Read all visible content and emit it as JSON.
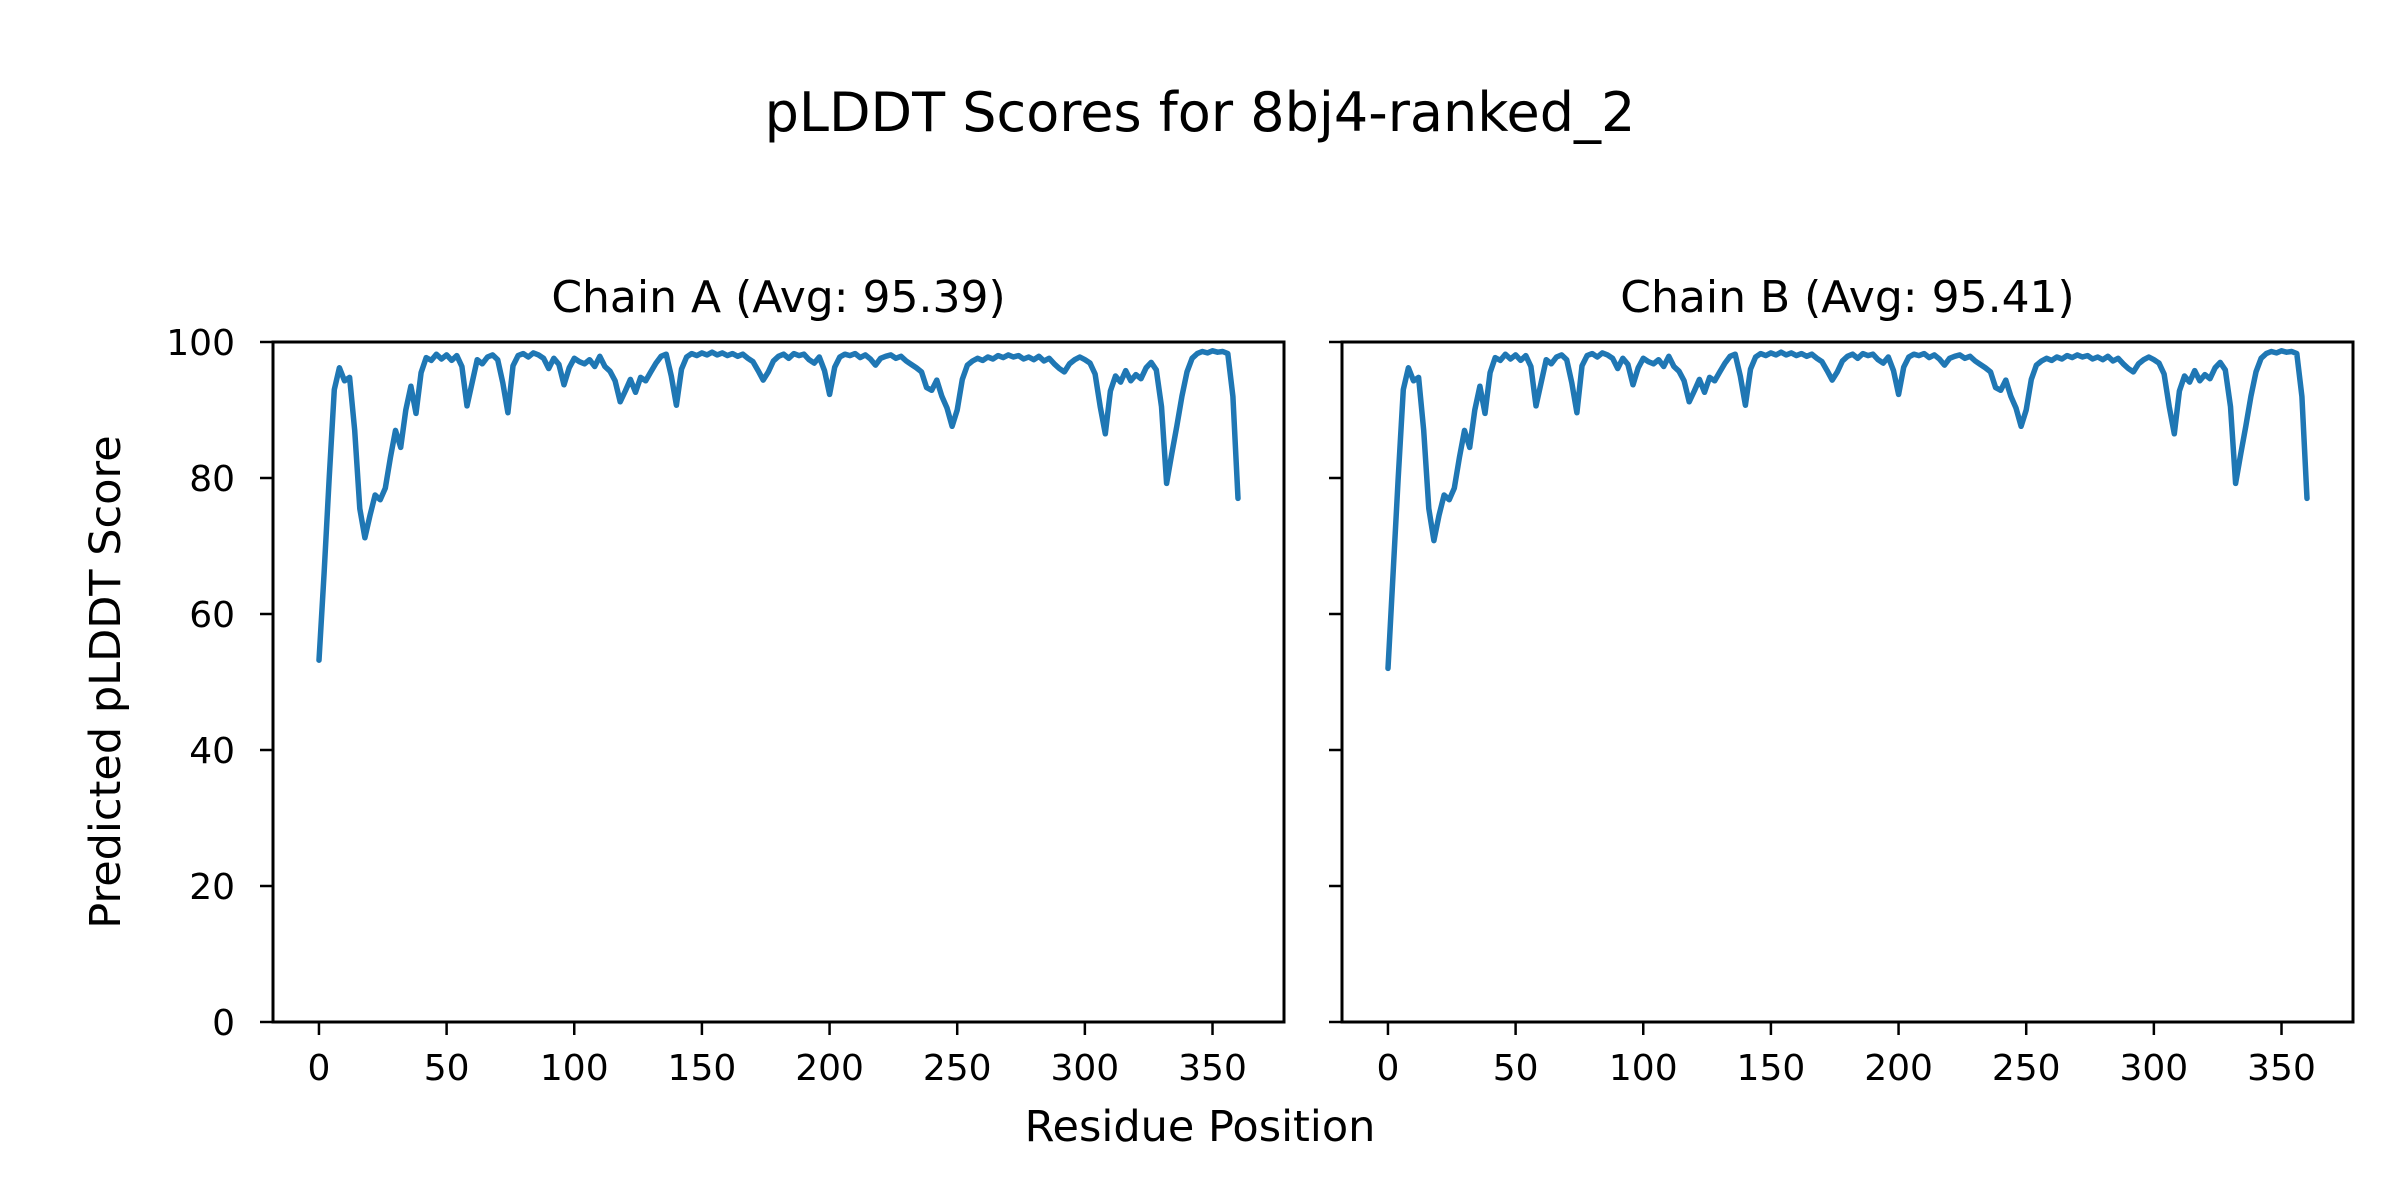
{
  "figure": {
    "title": "pLDDT Scores for 8bj4-ranked_2",
    "xlabel": "Residue Position",
    "ylabel": "Predicted pLDDT Score",
    "background_color": "#ffffff",
    "text_color": "#000000",
    "spine_color": "#000000"
  },
  "chart_data": [
    {
      "type": "line",
      "name": "chain-a",
      "title": "Chain A (Avg: 95.39)",
      "average": 95.39,
      "line_color": "#1f77b4",
      "xlim": [
        -18,
        378
      ],
      "ylim": [
        0,
        100
      ],
      "x_ticks": [
        0,
        50,
        100,
        150,
        200,
        250,
        300,
        350
      ],
      "y_ticks": [
        0,
        20,
        40,
        60,
        80,
        100
      ],
      "y_tick_labels_visible": true,
      "grid": false,
      "legend": false,
      "x": [
        0,
        2,
        4,
        6,
        8,
        10,
        12,
        14,
        16,
        18,
        20,
        22,
        24,
        26,
        28,
        30,
        32,
        34,
        36,
        38,
        40,
        42,
        44,
        46,
        48,
        50,
        52,
        54,
        56,
        58,
        60,
        62,
        64,
        66,
        68,
        70,
        72,
        74,
        76,
        78,
        80,
        82,
        84,
        86,
        88,
        90,
        92,
        94,
        96,
        98,
        100,
        102,
        104,
        106,
        108,
        110,
        112,
        114,
        116,
        118,
        120,
        122,
        124,
        126,
        128,
        130,
        132,
        134,
        136,
        138,
        140,
        142,
        144,
        146,
        148,
        150,
        152,
        154,
        156,
        158,
        160,
        162,
        164,
        166,
        168,
        170,
        172,
        174,
        176,
        178,
        180,
        182,
        184,
        186,
        188,
        190,
        192,
        194,
        196,
        198,
        200,
        202,
        204,
        206,
        208,
        210,
        212,
        214,
        216,
        218,
        220,
        222,
        224,
        226,
        228,
        230,
        232,
        234,
        236,
        238,
        240,
        242,
        244,
        246,
        248,
        250,
        252,
        254,
        256,
        258,
        260,
        262,
        264,
        266,
        268,
        270,
        272,
        274,
        276,
        278,
        280,
        282,
        284,
        286,
        288,
        290,
        292,
        294,
        296,
        298,
        300,
        302,
        304,
        306,
        308,
        310,
        312,
        314,
        316,
        318,
        320,
        322,
        324,
        326,
        328,
        330,
        332,
        334,
        336,
        338,
        340,
        342,
        344,
        346,
        348,
        350,
        352,
        354,
        356,
        358,
        360
      ],
      "values": [
        53.2,
        66,
        80,
        93,
        96.2,
        94.3,
        94.8,
        87,
        75.5,
        71.2,
        74.5,
        77.5,
        76.8,
        78.5,
        83,
        87,
        84.5,
        90,
        93.5,
        89.5,
        95.5,
        97.7,
        97.3,
        98.2,
        97.5,
        98.1,
        97.3,
        98,
        96.4,
        90.6,
        94,
        97.4,
        96.8,
        97.8,
        98.1,
        97.4,
        94,
        89.6,
        96.5,
        98,
        98.3,
        97.8,
        98.4,
        98.1,
        97.6,
        96.1,
        97.6,
        96.7,
        93.7,
        96.2,
        97.6,
        97.1,
        96.8,
        97.4,
        96.4,
        97.9,
        96.4,
        95.7,
        94.3,
        91.2,
        92.8,
        94.5,
        92.6,
        94.8,
        94.3,
        95.6,
        96.9,
        97.9,
        98.2,
        95,
        90.7,
        96,
        97.8,
        98.3,
        98,
        98.4,
        98.1,
        98.5,
        98.1,
        98.4,
        98,
        98.3,
        97.9,
        98.2,
        97.6,
        97.1,
        95.8,
        94.4,
        95.6,
        97.2,
        97.9,
        98.2,
        97.6,
        98.3,
        98,
        98.2,
        97.4,
        96.9,
        97.8,
        95.8,
        92.3,
        96.3,
        97.8,
        98.2,
        98,
        98.3,
        97.7,
        98.1,
        97.5,
        96.6,
        97.6,
        97.9,
        98.1,
        97.6,
        97.9,
        97.2,
        96.7,
        96.2,
        95.6,
        93.3,
        92.9,
        94.4,
        92,
        90.3,
        87.6,
        90,
        94.5,
        96.6,
        97.2,
        97.6,
        97.3,
        97.8,
        97.5,
        98,
        97.7,
        98.1,
        97.8,
        98,
        97.5,
        97.8,
        97.4,
        97.9,
        97.2,
        97.6,
        96.8,
        96.1,
        95.6,
        96.8,
        97.4,
        97.8,
        97.4,
        96.9,
        95.3,
        90.5,
        86.5,
        92.8,
        95,
        94.1,
        95.8,
        94.3,
        95.2,
        94.6,
        96.2,
        97,
        95.9,
        90.5,
        79.2,
        83.5,
        87.6,
        92,
        95.6,
        97.6,
        98.3,
        98.6,
        98.4,
        98.7,
        98.5,
        98.6,
        98.3,
        92,
        77
      ]
    },
    {
      "type": "line",
      "name": "chain-b",
      "title": "Chain B (Avg: 95.41)",
      "average": 95.41,
      "line_color": "#1f77b4",
      "xlim": [
        -18,
        378
      ],
      "ylim": [
        0,
        100
      ],
      "x_ticks": [
        0,
        50,
        100,
        150,
        200,
        250,
        300,
        350
      ],
      "y_ticks": [
        0,
        20,
        40,
        60,
        80,
        100
      ],
      "y_tick_labels_visible": false,
      "grid": false,
      "legend": false,
      "x": [
        0,
        2,
        4,
        6,
        8,
        10,
        12,
        14,
        16,
        18,
        20,
        22,
        24,
        26,
        28,
        30,
        32,
        34,
        36,
        38,
        40,
        42,
        44,
        46,
        48,
        50,
        52,
        54,
        56,
        58,
        60,
        62,
        64,
        66,
        68,
        70,
        72,
        74,
        76,
        78,
        80,
        82,
        84,
        86,
        88,
        90,
        92,
        94,
        96,
        98,
        100,
        102,
        104,
        106,
        108,
        110,
        112,
        114,
        116,
        118,
        120,
        122,
        124,
        126,
        128,
        130,
        132,
        134,
        136,
        138,
        140,
        142,
        144,
        146,
        148,
        150,
        152,
        154,
        156,
        158,
        160,
        162,
        164,
        166,
        168,
        170,
        172,
        174,
        176,
        178,
        180,
        182,
        184,
        186,
        188,
        190,
        192,
        194,
        196,
        198,
        200,
        202,
        204,
        206,
        208,
        210,
        212,
        214,
        216,
        218,
        220,
        222,
        224,
        226,
        228,
        230,
        232,
        234,
        236,
        238,
        240,
        242,
        244,
        246,
        248,
        250,
        252,
        254,
        256,
        258,
        260,
        262,
        264,
        266,
        268,
        270,
        272,
        274,
        276,
        278,
        280,
        282,
        284,
        286,
        288,
        290,
        292,
        294,
        296,
        298,
        300,
        302,
        304,
        306,
        308,
        310,
        312,
        314,
        316,
        318,
        320,
        322,
        324,
        326,
        328,
        330,
        332,
        334,
        336,
        338,
        340,
        342,
        344,
        346,
        348,
        350,
        352,
        354,
        356,
        358,
        360
      ],
      "values": [
        52,
        66,
        80,
        93,
        96.2,
        94.3,
        94.8,
        87,
        75.5,
        70.8,
        74.5,
        77.5,
        76.8,
        78.5,
        83,
        87,
        84.5,
        90,
        93.5,
        89.5,
        95.5,
        97.7,
        97.3,
        98.2,
        97.5,
        98.1,
        97.3,
        98,
        96.4,
        90.6,
        94,
        97.4,
        96.8,
        97.8,
        98.1,
        97.4,
        94,
        89.6,
        96.5,
        98,
        98.3,
        97.8,
        98.4,
        98.1,
        97.6,
        96.1,
        97.6,
        96.7,
        93.7,
        96.2,
        97.6,
        97.1,
        96.8,
        97.4,
        96.4,
        97.9,
        96.4,
        95.7,
        94.3,
        91.2,
        92.8,
        94.5,
        92.6,
        94.8,
        94.3,
        95.6,
        96.9,
        97.9,
        98.2,
        95,
        90.7,
        96,
        97.8,
        98.3,
        98,
        98.4,
        98.1,
        98.5,
        98.1,
        98.4,
        98,
        98.3,
        97.9,
        98.2,
        97.6,
        97.1,
        95.8,
        94.4,
        95.6,
        97.2,
        97.9,
        98.2,
        97.6,
        98.3,
        98,
        98.2,
        97.4,
        96.9,
        97.8,
        95.8,
        92.3,
        96.3,
        97.8,
        98.2,
        98,
        98.3,
        97.7,
        98.1,
        97.5,
        96.6,
        97.6,
        97.9,
        98.1,
        97.6,
        97.9,
        97.2,
        96.7,
        96.2,
        95.6,
        93.3,
        92.9,
        94.4,
        92,
        90.3,
        87.6,
        90,
        94.5,
        96.6,
        97.2,
        97.6,
        97.3,
        97.8,
        97.5,
        98,
        97.7,
        98.1,
        97.8,
        98,
        97.5,
        97.8,
        97.4,
        97.9,
        97.2,
        97.6,
        96.8,
        96.1,
        95.6,
        96.8,
        97.4,
        97.8,
        97.4,
        96.9,
        95.3,
        90.5,
        86.5,
        92.8,
        95,
        94.1,
        95.8,
        94.3,
        95.2,
        94.6,
        96.2,
        97,
        95.9,
        90.5,
        79.2,
        83.5,
        87.6,
        92,
        95.6,
        97.6,
        98.3,
        98.6,
        98.4,
        98.7,
        98.5,
        98.6,
        98.3,
        92,
        77
      ]
    }
  ]
}
